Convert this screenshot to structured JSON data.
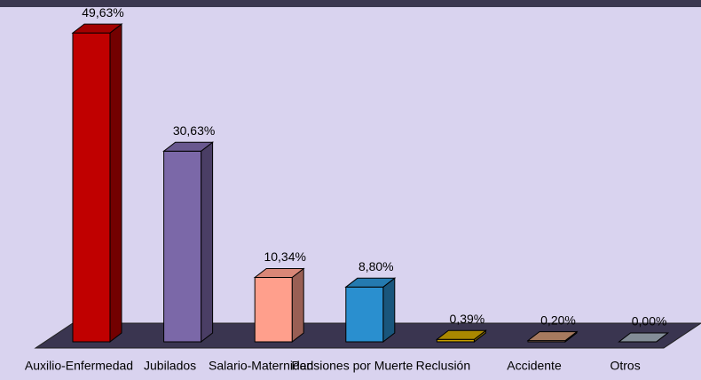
{
  "chart_data": {
    "type": "bar3d",
    "categories": [
      "Auxilio-Enfermedad",
      "Jubilados",
      "Salario-Maternidad",
      "Pensiones por Muerte",
      "Reclusión",
      "Accidente",
      "Otros"
    ],
    "values": [
      49.63,
      30.63,
      10.34,
      8.8,
      0.39,
      0.2,
      0.0
    ],
    "value_labels": [
      "49,63%",
      "30,63%",
      "10,34%",
      "8,80%",
      "0,39%",
      "0,20%",
      "0,00%"
    ],
    "colors": [
      "#c00000",
      "#7b68a8",
      "#ff9f8c",
      "#2a8fcf",
      "#c8a000",
      "#c49070",
      "#9aa6b2"
    ]
  }
}
